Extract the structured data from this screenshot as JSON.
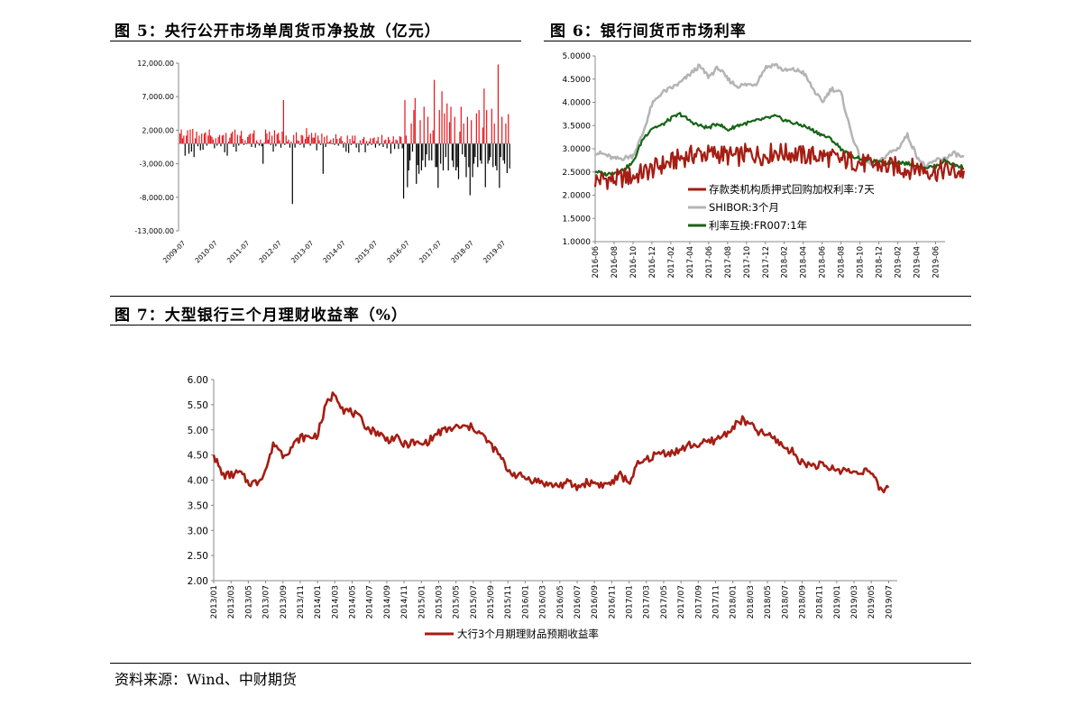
{
  "fig5": {
    "title": "图 5：央行公开市场单周货币净投放（亿元）",
    "chart_data": {
      "type": "bar",
      "ylim": [
        -13000,
        12000
      ],
      "yticks": [
        "12,000.00",
        "7,000.00",
        "2,000.00",
        "-3,000.00",
        "-8,000.00",
        "-13,000.00"
      ],
      "ytick_values": [
        12000,
        7000,
        2000,
        -3000,
        -8000,
        -13000
      ],
      "xticks": [
        "2009-07",
        "2010-07",
        "2011-07",
        "2012-07",
        "2013-07",
        "2014-07",
        "2015-07",
        "2016-07",
        "2017-07",
        "2018-07",
        "2019-07"
      ],
      "pos_color": "#e8141b",
      "neg_color": "#000000",
      "values": [
        1500,
        2100,
        800,
        1200,
        -1800,
        1200,
        2000,
        -1500,
        2100,
        -1200,
        2200,
        -2000,
        800,
        1800,
        -400,
        1200,
        -1000,
        1500,
        -900,
        1500,
        1700,
        -300,
        1200,
        2100,
        1200,
        1000,
        600,
        -700,
        800,
        -300,
        1000,
        1300,
        -400,
        1200,
        1300,
        -1300,
        1600,
        -1800,
        300,
        900,
        1500,
        1800,
        -500,
        2100,
        -1200,
        1300,
        -300,
        1200,
        1900,
        700,
        -200,
        500,
        -100,
        1000,
        1300,
        1500,
        -500,
        1500,
        2000,
        -600,
        500,
        200,
        -300,
        600,
        -400,
        -3000,
        200,
        2100,
        1500,
        600,
        1800,
        -200,
        1200,
        -1200,
        2000,
        -400,
        1400,
        1600,
        500,
        -600,
        1800,
        6500,
        -200,
        1200,
        300,
        600,
        -600,
        300,
        -9000,
        1300,
        -600,
        1700,
        500,
        400,
        -200,
        1300,
        1200,
        -600,
        700,
        2300,
        1000,
        1300,
        -300,
        1600,
        900,
        900,
        1600,
        -1000,
        1200,
        500,
        -200,
        1500,
        -4500,
        1000,
        -500,
        1200,
        200,
        300,
        600,
        -100,
        800,
        -200,
        1400,
        700,
        -300,
        800,
        1100,
        400,
        -600,
        200,
        -1200,
        1200,
        -1400,
        700,
        -200,
        1200,
        400,
        1200,
        -600,
        100,
        -1300,
        500,
        -200,
        700,
        1000,
        -1300,
        400,
        -300,
        300,
        800,
        -200,
        800,
        900,
        -600,
        400,
        1000,
        -300,
        -100,
        1300,
        -500,
        500,
        600,
        -700,
        1000,
        600,
        -1500,
        300,
        1100,
        -800,
        600,
        500,
        -800,
        1100,
        1000,
        -700,
        -8200,
        6500,
        1200,
        -6500,
        -4000,
        -2500,
        3000,
        -1200,
        5000,
        6800,
        -6000,
        -3200,
        -4500,
        3500,
        -4000,
        -2500,
        5500,
        -3500,
        -1600,
        4000,
        -2500,
        1500,
        -2500,
        2000,
        9500,
        -3500,
        -3500,
        -6600,
        5000,
        -3000,
        7800,
        -4000,
        4500,
        -2000,
        6000,
        -4000,
        3200,
        5500,
        -2500,
        -3500,
        4000,
        -4000,
        -3500,
        -5300,
        1800,
        5500,
        -1600,
        3000,
        -2000,
        -5000,
        4000,
        -3500,
        -7700,
        3500,
        -5000,
        -3000,
        -2000,
        4500,
        -3500,
        5000,
        -2500,
        -3000,
        2400,
        8200,
        -6500,
        5000,
        -3000,
        -2500,
        -2000,
        5200,
        -3500,
        3000,
        -3300,
        -4000,
        11800,
        -6600,
        -2000,
        4000,
        -2500,
        -3000,
        3000,
        -4400,
        4400,
        -3700
      ]
    }
  },
  "fig6": {
    "title": "图 6：银行间货币市场利率",
    "chart_data": {
      "type": "line",
      "ylim": [
        1.0,
        5.0
      ],
      "yticks": [
        "5.0000",
        "4.5000",
        "4.0000",
        "3.5000",
        "3.0000",
        "2.5000",
        "2.0000",
        "1.5000",
        "1.0000"
      ],
      "ytick_values": [
        5.0,
        4.5,
        4.0,
        3.5,
        3.0,
        2.5,
        2.0,
        1.5,
        1.0
      ],
      "xticks": [
        "2016-06",
        "2016-08",
        "2016-10",
        "2016-12",
        "2017-02",
        "2017-04",
        "2017-06",
        "2017-08",
        "2017-10",
        "2017-12",
        "2018-02",
        "2018-04",
        "2018-06",
        "2018-08",
        "2018-10",
        "2018-12",
        "2019-02",
        "2019-04",
        "2019-06"
      ],
      "xrange": [
        "2016-06",
        "2019-07"
      ],
      "series": [
        {
          "name": "存款类机构质押式回购加权利率:7天",
          "color": "#a51d13",
          "months": [
            0,
            1,
            2,
            3,
            4,
            5,
            6,
            7,
            8,
            9,
            10,
            11,
            12,
            13,
            14,
            15,
            16,
            17,
            18,
            19,
            20,
            21,
            22,
            23,
            24,
            25,
            26,
            27,
            28,
            29,
            30,
            31,
            32,
            33,
            34,
            35,
            36,
            37,
            38,
            39
          ],
          "values": [
            2.32,
            2.35,
            2.33,
            2.38,
            2.4,
            2.48,
            2.55,
            2.65,
            2.7,
            2.8,
            2.85,
            2.9,
            2.88,
            2.9,
            2.85,
            2.82,
            2.9,
            2.88,
            2.85,
            2.95,
            2.9,
            2.9,
            2.85,
            2.85,
            2.85,
            2.8,
            2.75,
            2.75,
            2.7,
            2.65,
            2.65,
            2.6,
            2.62,
            2.55,
            2.6,
            2.55,
            2.5,
            2.55,
            2.5,
            2.5
          ]
        },
        {
          "name": "SHIBOR:3个月",
          "color": "#b4b4b4",
          "months": [
            0,
            1,
            2,
            3,
            4,
            5,
            6,
            7,
            8,
            9,
            10,
            11,
            12,
            13,
            14,
            15,
            16,
            17,
            18,
            19,
            20,
            21,
            22,
            23,
            24,
            25,
            26,
            27,
            28,
            29,
            30,
            31,
            32,
            33,
            34,
            35,
            36,
            37,
            38,
            39
          ],
          "values": [
            2.92,
            2.88,
            2.78,
            2.8,
            2.85,
            3.3,
            3.95,
            4.2,
            4.3,
            4.42,
            4.6,
            4.78,
            4.55,
            4.75,
            4.5,
            4.35,
            4.38,
            4.4,
            4.75,
            4.82,
            4.68,
            4.7,
            4.65,
            4.3,
            4.0,
            4.3,
            4.2,
            3.4,
            2.8,
            2.7,
            2.7,
            2.9,
            3.0,
            3.3,
            2.85,
            2.6,
            2.75,
            2.8,
            2.9,
            2.8
          ]
        },
        {
          "name": "利率互换:FR007:1年",
          "color": "#166516",
          "months": [
            0,
            1,
            2,
            3,
            4,
            5,
            6,
            7,
            8,
            9,
            10,
            11,
            12,
            13,
            14,
            15,
            16,
            17,
            18,
            19,
            20,
            21,
            22,
            23,
            24,
            25,
            26,
            27,
            28,
            29,
            30,
            31,
            32,
            33,
            34,
            35,
            36,
            37,
            38,
            39
          ],
          "values": [
            2.52,
            2.45,
            2.48,
            2.55,
            2.7,
            3.2,
            3.45,
            3.5,
            3.65,
            3.75,
            3.6,
            3.5,
            3.45,
            3.55,
            3.4,
            3.5,
            3.55,
            3.6,
            3.65,
            3.7,
            3.62,
            3.55,
            3.5,
            3.4,
            3.3,
            3.2,
            3.0,
            2.85,
            2.8,
            2.75,
            2.7,
            2.7,
            2.72,
            2.68,
            2.65,
            2.6,
            2.62,
            2.75,
            2.65,
            2.6
          ]
        }
      ]
    }
  },
  "fig7": {
    "title": "图 7：大型银行三个月理财收益率（%）",
    "chart_data": {
      "type": "line",
      "ylim": [
        2.0,
        6.0
      ],
      "yticks": [
        "6.00",
        "5.50",
        "5.00",
        "4.50",
        "4.00",
        "3.50",
        "3.00",
        "2.50",
        "2.00"
      ],
      "ytick_values": [
        6.0,
        5.5,
        5.0,
        4.5,
        4.0,
        3.5,
        3.0,
        2.5,
        2.0
      ],
      "xticks": [
        "2013/01",
        "2013/03",
        "2013/05",
        "2013/07",
        "2013/09",
        "2013/11",
        "2014/01",
        "2014/03",
        "2014/05",
        "2014/07",
        "2014/09",
        "2014/11",
        "2015/01",
        "2015/03",
        "2015/05",
        "2015/07",
        "2015/09",
        "2015/11",
        "2016/01",
        "2016/03",
        "2016/05",
        "2016/07",
        "2016/09",
        "2016/11",
        "2017/01",
        "2017/03",
        "2017/05",
        "2017/07",
        "2017/09",
        "2017/11",
        "2018/01",
        "2018/03",
        "2018/05",
        "2018/07",
        "2018/09",
        "2018/11",
        "2019/01",
        "2019/03",
        "2019/05",
        "2019/07"
      ],
      "xrange": [
        "2013/01",
        "2019/08"
      ],
      "series": [
        {
          "name": "大行3个月期理财品预期收益率",
          "color": "#a51d13",
          "months": [
            0,
            1,
            2,
            3,
            4,
            5,
            6,
            7,
            8,
            9,
            10,
            11,
            12,
            13,
            14,
            15,
            16,
            17,
            18,
            19,
            20,
            21,
            22,
            23,
            24,
            25,
            26,
            27,
            28,
            29,
            30,
            31,
            32,
            33,
            34,
            35,
            36,
            37,
            38,
            39,
            40,
            41,
            42,
            43,
            44,
            45,
            46,
            47,
            48,
            49,
            50,
            51,
            52,
            53,
            54,
            55,
            56,
            57,
            58,
            59,
            60,
            61,
            62,
            63,
            64,
            65,
            66,
            67,
            68,
            69,
            70,
            71,
            72,
            73,
            74,
            75,
            76,
            77,
            78
          ],
          "values": [
            4.5,
            4.1,
            4.1,
            4.15,
            3.95,
            3.95,
            4.2,
            4.75,
            4.5,
            4.65,
            4.85,
            4.85,
            4.9,
            5.5,
            5.75,
            5.4,
            5.35,
            5.2,
            5.0,
            4.95,
            4.8,
            4.85,
            4.7,
            4.75,
            4.7,
            4.8,
            4.95,
            5.0,
            5.05,
            5.05,
            5.05,
            4.9,
            4.7,
            4.5,
            4.2,
            4.1,
            4.05,
            4.0,
            3.95,
            3.9,
            3.9,
            3.95,
            3.85,
            3.95,
            3.95,
            3.9,
            3.95,
            4.1,
            3.95,
            4.3,
            4.4,
            4.5,
            4.55,
            4.55,
            4.6,
            4.7,
            4.7,
            4.75,
            4.8,
            4.9,
            5.05,
            5.2,
            5.1,
            4.95,
            4.9,
            4.8,
            4.65,
            4.55,
            4.35,
            4.3,
            4.3,
            4.25,
            4.2,
            4.2,
            4.15,
            4.2,
            4.15,
            3.8,
            3.85
          ]
        }
      ]
    }
  },
  "source": "资料来源：Wind、中财期货"
}
